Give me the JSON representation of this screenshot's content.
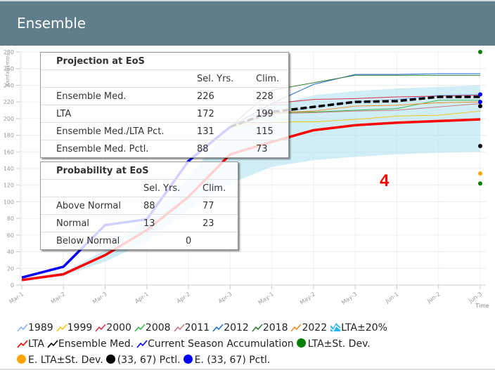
{
  "header": {
    "title": "Ensemble"
  },
  "annotation_marker": "4",
  "projection_panel": {
    "title": "Projection at EoS",
    "columns": [
      "Sel. Yrs.",
      "Clim."
    ],
    "rows": [
      {
        "label": "Ensemble Med.",
        "sel": "226",
        "clim": "228"
      },
      {
        "label": "LTA",
        "sel": "172",
        "clim": "199"
      },
      {
        "label": "Ensemble Med./LTA Pct.",
        "sel": "131",
        "clim": "115"
      },
      {
        "label": "Ensemble Med. Pctl.",
        "sel": "88",
        "clim": "73"
      }
    ]
  },
  "probability_panel": {
    "title": "Probability at EoS",
    "columns": [
      "Sel. Yrs.",
      "Clim."
    ],
    "rows": [
      {
        "label": "Above Normal",
        "sel": "88",
        "clim": "77"
      },
      {
        "label": "Normal",
        "sel": "13",
        "clim": "23"
      },
      {
        "label": "Below Normal",
        "sel": "",
        "clim": "",
        "merged": "0"
      }
    ]
  },
  "legend": {
    "items": [
      {
        "label": "1989",
        "type": "line",
        "color": "#8ab4f8"
      },
      {
        "label": "1999",
        "type": "line",
        "color": "#f5c518"
      },
      {
        "label": "2000",
        "type": "line",
        "color": "#d9334a"
      },
      {
        "label": "2008",
        "type": "line",
        "color": "#3cb94a"
      },
      {
        "label": "2011",
        "type": "line",
        "color": "#c97a7e"
      },
      {
        "label": "2012",
        "type": "line",
        "color": "#1f6fd1"
      },
      {
        "label": "2018",
        "type": "line",
        "color": "#2e7d32"
      },
      {
        "label": "2022",
        "type": "line",
        "color": "#f28c28"
      },
      {
        "label": "LTA±20%",
        "type": "area",
        "color": "#29b6f6"
      },
      {
        "label": "LTA",
        "type": "line",
        "color": "#ff0000"
      },
      {
        "label": "Ensemble Med.",
        "type": "line",
        "color": "#000000"
      },
      {
        "label": "Current Season Accumulation",
        "type": "line",
        "color": "#0000ff"
      },
      {
        "label": "LTA±St. Dev.",
        "type": "dot",
        "color": "#008000"
      },
      {
        "label": "E. LTA±St. Dev.",
        "type": "dot",
        "color": "#ffa500"
      },
      {
        "label": "(33, 67) Pctl.",
        "type": "dot",
        "color": "#000000"
      },
      {
        "label": "E. (33, 67) Pctl.",
        "type": "dot",
        "color": "#0000ff"
      }
    ]
  },
  "chart_data": {
    "type": "line",
    "title": "",
    "xlabel": "Time",
    "ylabel": "Rainfall (mm)",
    "ylim": [
      0,
      280
    ],
    "yticks": [
      0,
      20,
      40,
      60,
      80,
      100,
      120,
      140,
      160,
      180,
      200,
      220,
      240,
      260,
      280
    ],
    "categories": [
      "Mar-1",
      "Mar-2",
      "Mar-3",
      "Apr-1",
      "Apr-2",
      "Apr-3",
      "May-1",
      "May-2",
      "May-3",
      "Jun-1",
      "Jun-2",
      "Jun-3"
    ],
    "grid": true,
    "legend_position": "bottom",
    "lta_band": {
      "lower": [
        5,
        11,
        28,
        52,
        90,
        122,
        142,
        150,
        154,
        157,
        159,
        160
      ],
      "upper": [
        8,
        15,
        42,
        80,
        130,
        190,
        215,
        228,
        233,
        236,
        238,
        240
      ]
    },
    "series": [
      {
        "name": "1989",
        "color": "#8ab4f8",
        "values": [
          null,
          null,
          null,
          null,
          null,
          190,
          205,
          214,
          220,
          223,
          228,
          229
        ]
      },
      {
        "name": "1999",
        "color": "#f5c518",
        "values": [
          null,
          null,
          null,
          null,
          null,
          190,
          196,
          196,
          199,
          203,
          204,
          209
        ]
      },
      {
        "name": "2000",
        "color": "#d9334a",
        "values": [
          null,
          null,
          null,
          null,
          null,
          190,
          218,
          223,
          224,
          226,
          227,
          228
        ]
      },
      {
        "name": "2008",
        "color": "#3cb94a",
        "values": [
          null,
          null,
          null,
          null,
          null,
          190,
          207,
          208,
          210,
          212,
          222,
          222
        ]
      },
      {
        "name": "2011",
        "color": "#c97a7e",
        "values": [
          null,
          null,
          null,
          null,
          null,
          190,
          206,
          207,
          209,
          210,
          214,
          218
        ]
      },
      {
        "name": "2012",
        "color": "#1f6fd1",
        "values": [
          null,
          null,
          null,
          null,
          null,
          190,
          218,
          241,
          253,
          253,
          254,
          254
        ]
      },
      {
        "name": "2018",
        "color": "#2e7d32",
        "values": [
          null,
          null,
          null,
          null,
          null,
          190,
          234,
          243,
          252,
          252,
          252,
          252
        ]
      },
      {
        "name": "2022",
        "color": "#f28c28",
        "values": [
          null,
          null,
          null,
          null,
          null,
          190,
          207,
          209,
          215,
          216,
          219,
          220
        ]
      },
      {
        "name": "LTA",
        "color": "#ff0000",
        "values": [
          6,
          13,
          36,
          66,
          106,
          157,
          172,
          186,
          192,
          195,
          197,
          199
        ]
      },
      {
        "name": "Ensemble Med.",
        "color": "#000000",
        "dashed": true,
        "values": [
          null,
          null,
          null,
          null,
          null,
          190,
          208,
          214,
          220,
          221,
          226,
          226
        ]
      },
      {
        "name": "Current Season Accumulation",
        "color": "#0000ff",
        "values": [
          9,
          22,
          72,
          79,
          149,
          190,
          null,
          null,
          null,
          null,
          null,
          null
        ]
      }
    ],
    "end_points": [
      {
        "name": "LTA±St. Dev.",
        "color": "#008000",
        "values": [
          280,
          122
        ]
      },
      {
        "name": "E. LTA±St. Dev.",
        "color": "#ffa500",
        "values": [
          134
        ]
      },
      {
        "name": "(33, 67) Pctl.",
        "color": "#000000",
        "values": [
          215,
          167
        ]
      },
      {
        "name": "E. (33, 67) Pctl.",
        "color": "#0000ff",
        "values": [
          229,
          220
        ]
      }
    ]
  }
}
